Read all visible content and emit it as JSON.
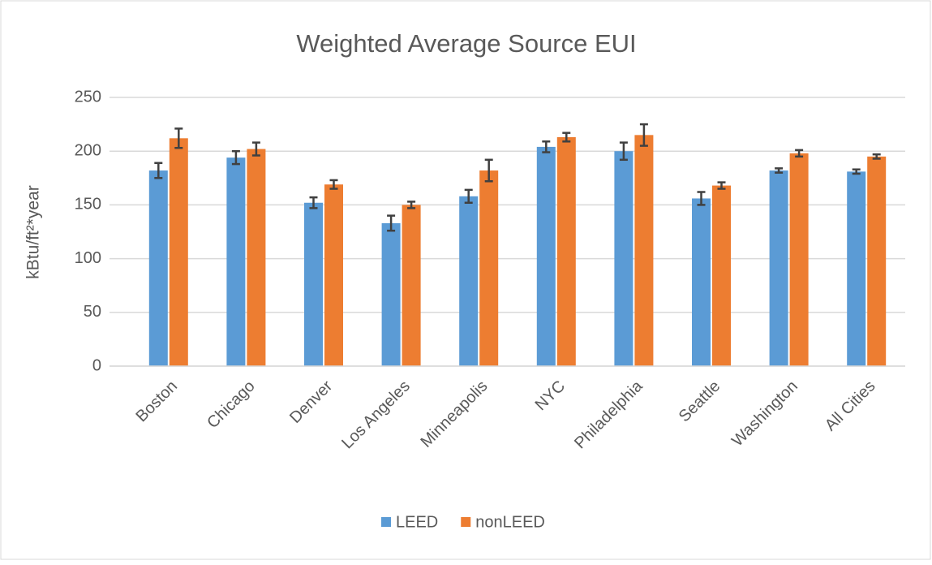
{
  "chart_data": {
    "type": "bar",
    "title": "Weighted Average Source EUI",
    "y_label": "kBtu/ft²*year",
    "categories": [
      "Boston",
      "Chicago",
      "Denver",
      "Los Angeles",
      "Minneapolis",
      "NYC",
      "Philadelphia",
      "Seattle",
      "Washington",
      "All Cities"
    ],
    "series": [
      {
        "name": "LEED",
        "color": "#5b9bd5",
        "values": [
          182,
          194,
          152,
          133,
          158,
          204,
          200,
          156,
          182,
          181
        ],
        "errors": [
          7,
          6,
          5,
          7,
          6,
          5,
          8,
          6,
          2,
          2
        ]
      },
      {
        "name": "nonLEED",
        "color": "#ed7d31",
        "values": [
          212,
          202,
          169,
          150,
          182,
          213,
          215,
          168,
          198,
          195
        ],
        "errors": [
          9,
          6,
          4,
          3,
          10,
          4,
          10,
          3,
          3,
          2
        ]
      }
    ],
    "ylim": [
      0,
      250
    ],
    "yticks": [
      0,
      50,
      100,
      150,
      200,
      250
    ],
    "grid": true,
    "legend": "bottom"
  }
}
